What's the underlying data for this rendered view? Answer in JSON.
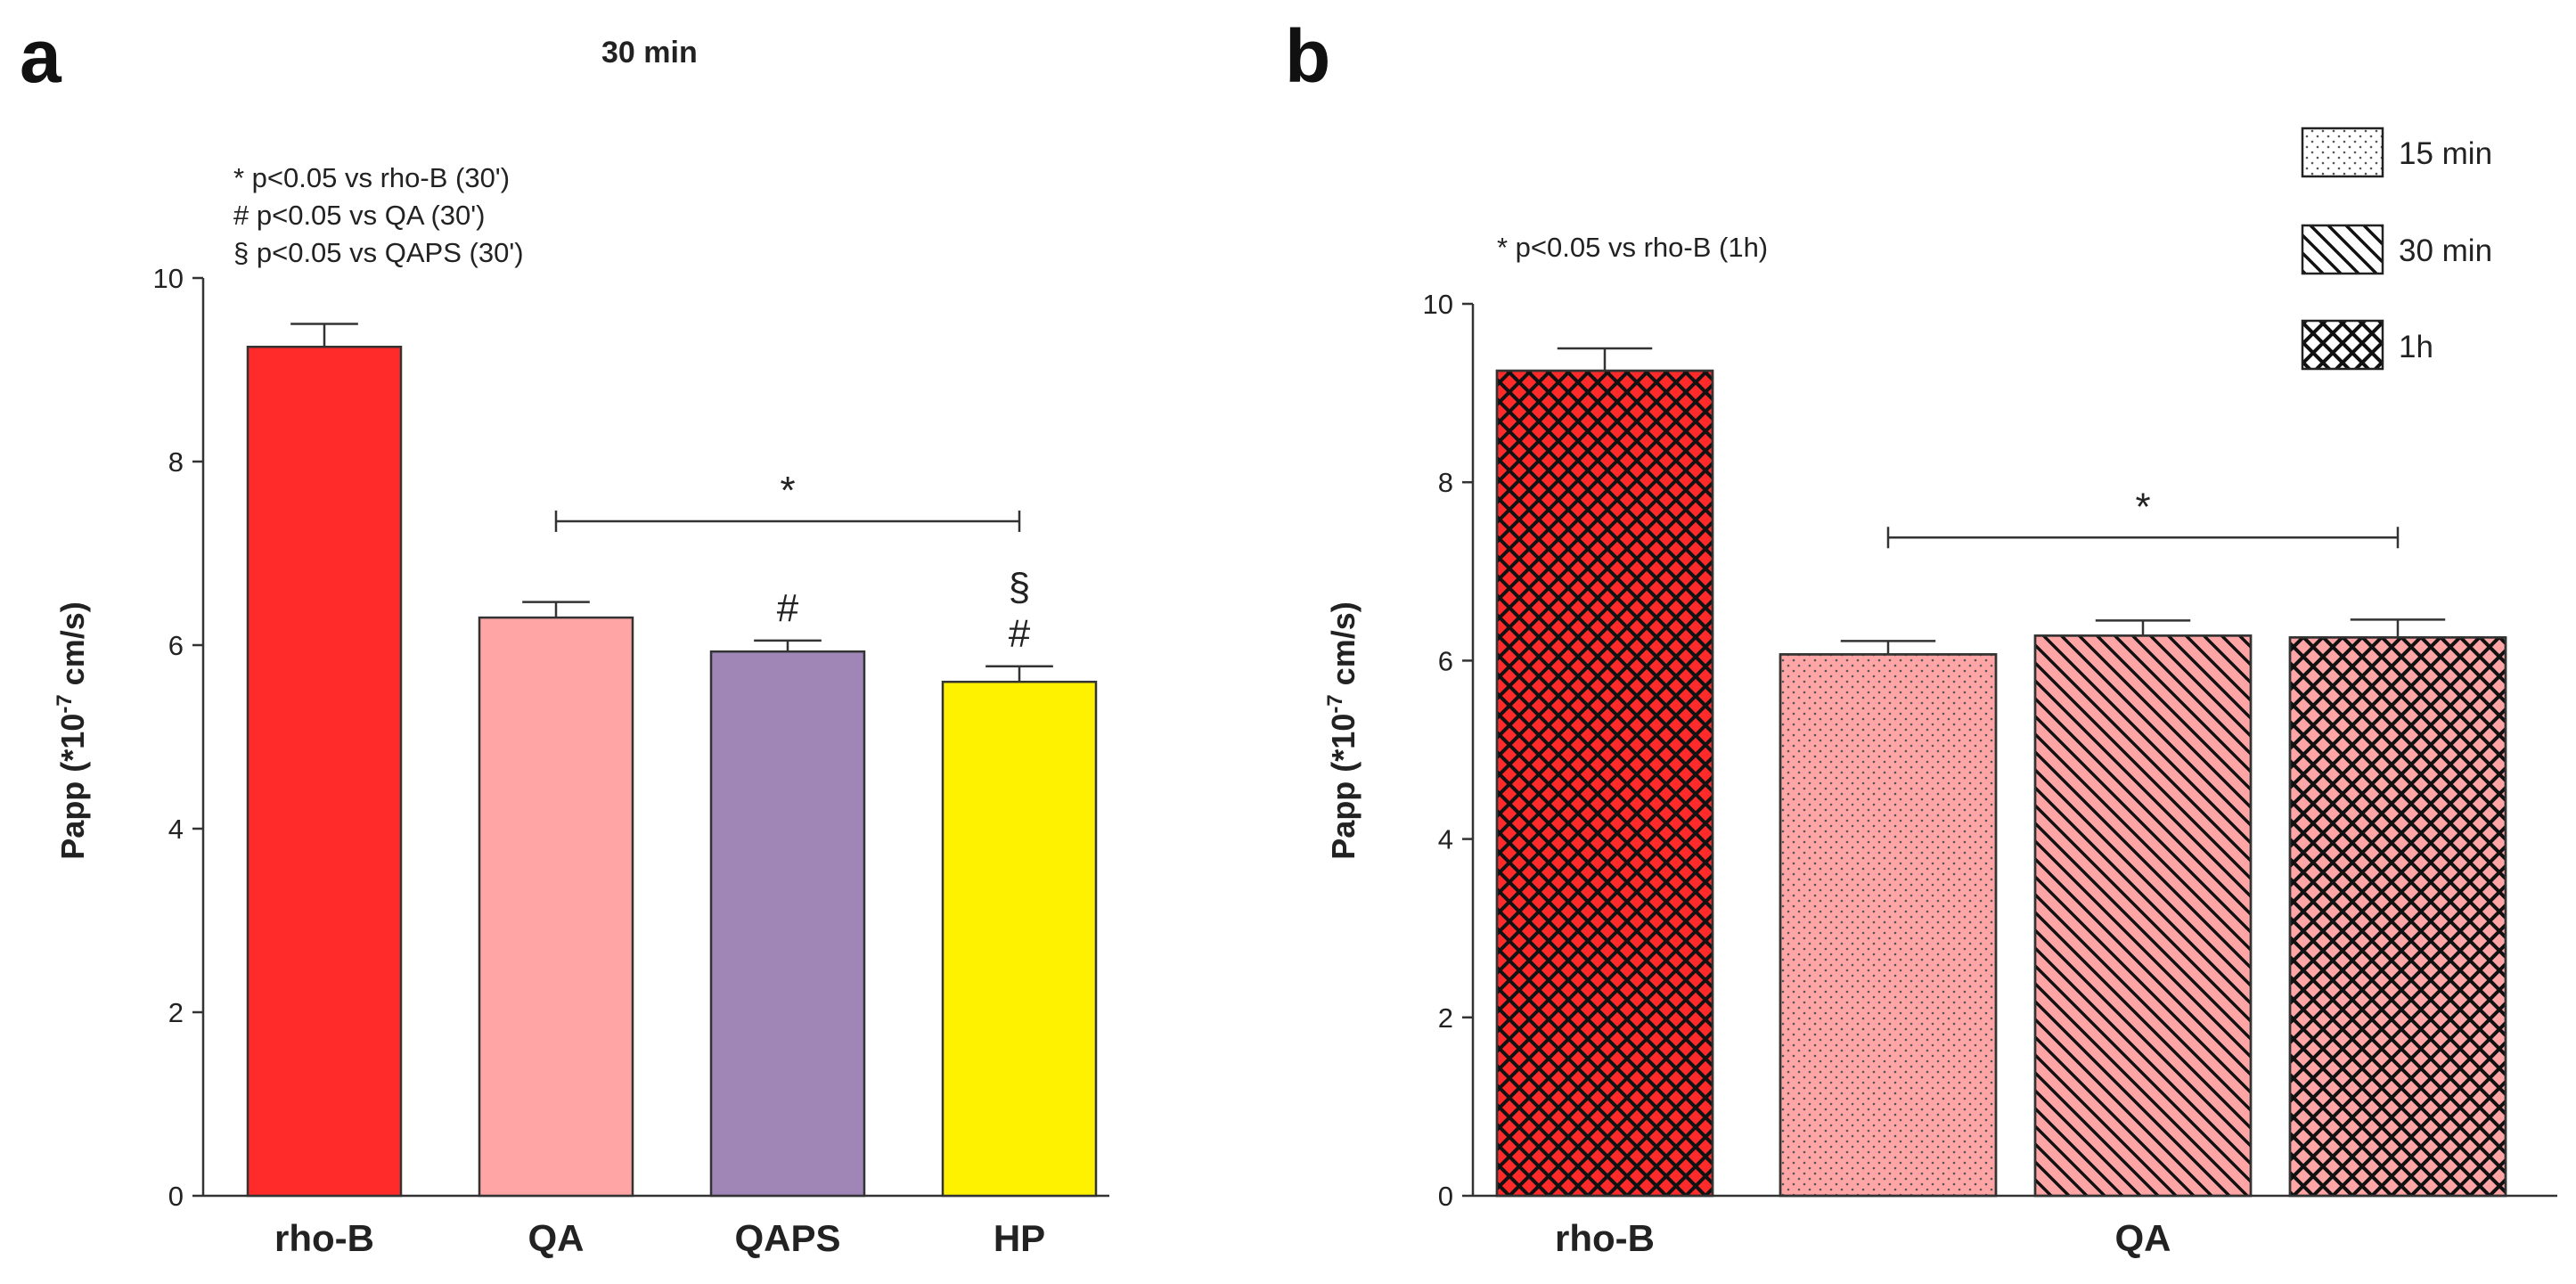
{
  "chart_data": [
    {
      "type": "bar",
      "panel_label": "a",
      "title": "30 min",
      "ylabel": "Papp (*10",
      "ylabel_exp": "-7",
      "ylabel_tail": " cm/s)",
      "ylim": [
        0,
        10
      ],
      "yticks": [
        0,
        2,
        4,
        6,
        8,
        10
      ],
      "categories": [
        "rho-B",
        "QA",
        "QAPS",
        "HP"
      ],
      "values": [
        9.25,
        6.3,
        5.93,
        5.6
      ],
      "errors": [
        0.25,
        0.17,
        0.12,
        0.17
      ],
      "colors": [
        "#ff2a2a",
        "#ffa5a5",
        "#a085b7",
        "#fff200"
      ],
      "markers": [
        "",
        "",
        "#",
        "#"
      ],
      "markers_top": [
        "",
        "",
        "",
        "§"
      ],
      "notes": [
        "* p<0.05 vs rho-B (30')",
        "# p<0.05 vs QA  (30')",
        "§ p<0.05 vs QAPS (30')"
      ],
      "bracket": {
        "label": "*",
        "from": "QA",
        "to": "HP",
        "y": 7.35
      },
      "grid": false
    },
    {
      "type": "bar",
      "panel_label": "b",
      "ylabel": "Papp (*10",
      "ylabel_exp": "-7",
      "ylabel_tail": " cm/s)",
      "ylim": [
        0,
        10
      ],
      "yticks": [
        0,
        2,
        4,
        6,
        8,
        10
      ],
      "categories": [
        "rho-B",
        "QA"
      ],
      "bars": [
        {
          "category": "rho-B",
          "series": "1h",
          "value": 9.25,
          "error": 0.25,
          "color": "#ff2a2a",
          "pattern": "crosshatch"
        },
        {
          "category": "QA",
          "series": "15 min",
          "value": 6.07,
          "error": 0.15,
          "color": "#ffa5a5",
          "pattern": "dots"
        },
        {
          "category": "QA",
          "series": "30 min",
          "value": 6.28,
          "error": 0.17,
          "color": "#ffa5a5",
          "pattern": "diagonal"
        },
        {
          "category": "QA",
          "series": "1h",
          "value": 6.26,
          "error": 0.2,
          "color": "#ffa5a5",
          "pattern": "crosshatch"
        }
      ],
      "notes": [
        "* p<0.05 vs rho-B (1h)"
      ],
      "bracket": {
        "label": "*",
        "y": 7.38
      },
      "legend": {
        "placement": "top-right",
        "entries": [
          {
            "name": "15 min",
            "pattern": "dots"
          },
          {
            "name": "30 min",
            "pattern": "diagonal"
          },
          {
            "name": "1h",
            "pattern": "crosshatch"
          }
        ]
      },
      "grid": false
    }
  ]
}
